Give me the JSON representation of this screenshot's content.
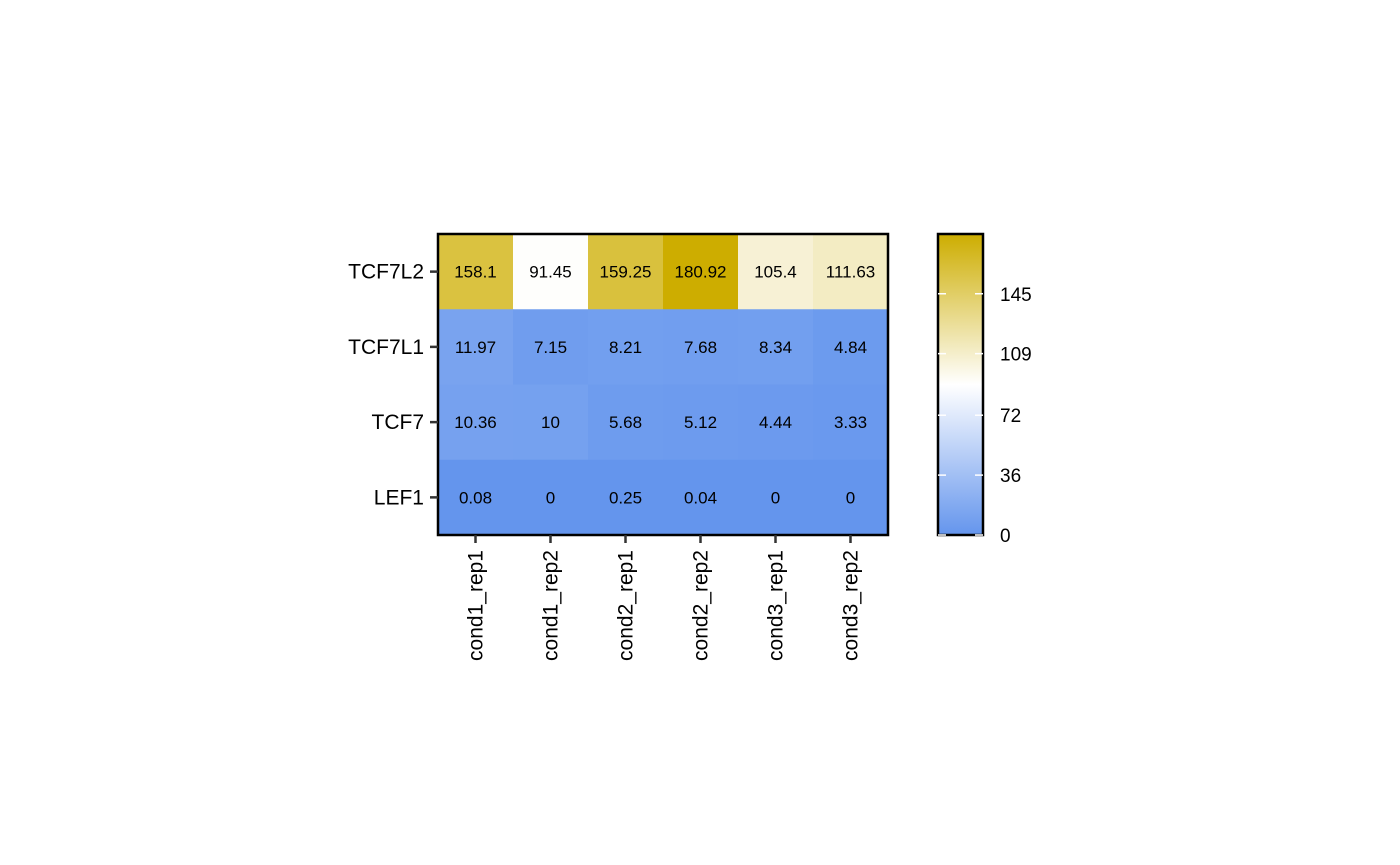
{
  "chart_data": {
    "type": "heatmap",
    "rows": [
      "TCF7L2",
      "TCF7L1",
      "TCF7",
      "LEF1"
    ],
    "columns": [
      "cond1_rep1",
      "cond1_rep2",
      "cond2_rep1",
      "cond2_rep2",
      "cond3_rep1",
      "cond3_rep2"
    ],
    "values": [
      [
        158.1,
        91.45,
        159.25,
        180.92,
        105.4,
        111.63
      ],
      [
        11.97,
        7.15,
        8.21,
        7.68,
        8.34,
        4.84
      ],
      [
        10.36,
        10,
        5.68,
        5.12,
        4.44,
        3.33
      ],
      [
        0.08,
        0,
        0.25,
        0.04,
        0,
        0
      ]
    ],
    "value_labels": [
      [
        "158.1",
        "91.45",
        "159.25",
        "180.92",
        "105.4",
        "111.63"
      ],
      [
        "11.97",
        "7.15",
        "8.21",
        "7.68",
        "8.34",
        "4.84"
      ],
      [
        "10.36",
        "10",
        "5.68",
        "5.12",
        "4.44",
        "3.33"
      ],
      [
        "0.08",
        "0",
        "0.25",
        "0.04",
        "0",
        "0"
      ]
    ],
    "title": "",
    "xlabel": "",
    "ylabel": "",
    "color_scale": {
      "type": "diverging",
      "low": "#6495ED",
      "mid": "#FFFFFF",
      "high": "#CDAD00",
      "range": [
        0,
        180.92
      ],
      "midpoint": 90.46
    },
    "legend": {
      "title": "",
      "position": "right",
      "ticks": [
        0,
        36,
        72,
        109,
        145
      ],
      "tick_labels": [
        "0",
        "36",
        "72",
        "109",
        "145"
      ]
    },
    "grid": false
  }
}
